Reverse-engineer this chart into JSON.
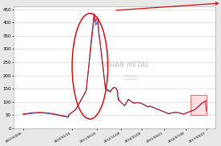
{
  "bg_color": "#e8e8e8",
  "plot_bg_color": "#ffffff",
  "x_labels": [
    "2007/04/06",
    "2010/01/15",
    "2011/06/25",
    "2012/11/09",
    "2014/01/09",
    "2015/04/21",
    "2016/07/08",
    "2017/09/21"
  ],
  "y_ticks": [
    0,
    50,
    100,
    150,
    200,
    250,
    300,
    350,
    400,
    450
  ],
  "ylim": [
    0,
    460
  ],
  "line_color_blue": "#2244bb",
  "line_color_red": "#cc1111",
  "ellipse_color": "#cc1111",
  "highlight_box_color": "#ffcccc",
  "total_years": 10.46,
  "dates_years": [
    0,
    2.79,
    4.22,
    5.6,
    6.77,
    8.03,
    9.27,
    10.46
  ]
}
